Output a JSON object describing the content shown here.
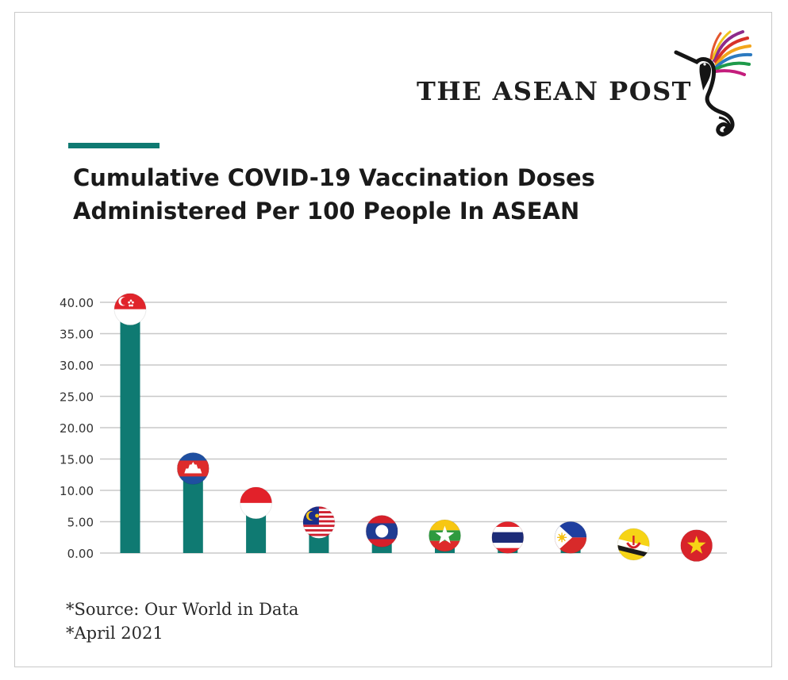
{
  "brand": {
    "name": "THE ASEAN POST"
  },
  "colors": {
    "bar": "#0f7a72",
    "accent": "#0f7a72",
    "grid": "#c8c8c8",
    "text": "#1a1a1a"
  },
  "title": {
    "line1": "Cumulative COVID-19 Vaccination Doses",
    "line2": "Administered Per 100 People In ASEAN"
  },
  "footnotes": {
    "source": "*Source: Our World in Data",
    "date": "*April 2021"
  },
  "chart_data": {
    "type": "bar",
    "categories": [
      "Singapore",
      "Cambodia",
      "Indonesia",
      "Malaysia",
      "Laos",
      "Myanmar",
      "Thailand",
      "Philippines",
      "Brunei",
      "Vietnam"
    ],
    "category_icons": [
      "singapore-flag-icon",
      "cambodia-flag-icon",
      "indonesia-flag-icon",
      "malaysia-flag-icon",
      "laos-flag-icon",
      "myanmar-flag-icon",
      "thailand-flag-icon",
      "philippines-flag-icon",
      "brunei-flag-icon",
      "vietnam-flag-icon"
    ],
    "values": [
      38.0,
      12.6,
      7.1,
      4.0,
      2.6,
      1.9,
      1.6,
      1.6,
      0.5,
      0.3
    ],
    "ylim": [
      0,
      40
    ],
    "yticks": [
      "0.00",
      "5.00",
      "10.00",
      "15.00",
      "20.00",
      "25.00",
      "30.00",
      "35.00",
      "40.00"
    ],
    "grid": true,
    "legend": "none"
  }
}
